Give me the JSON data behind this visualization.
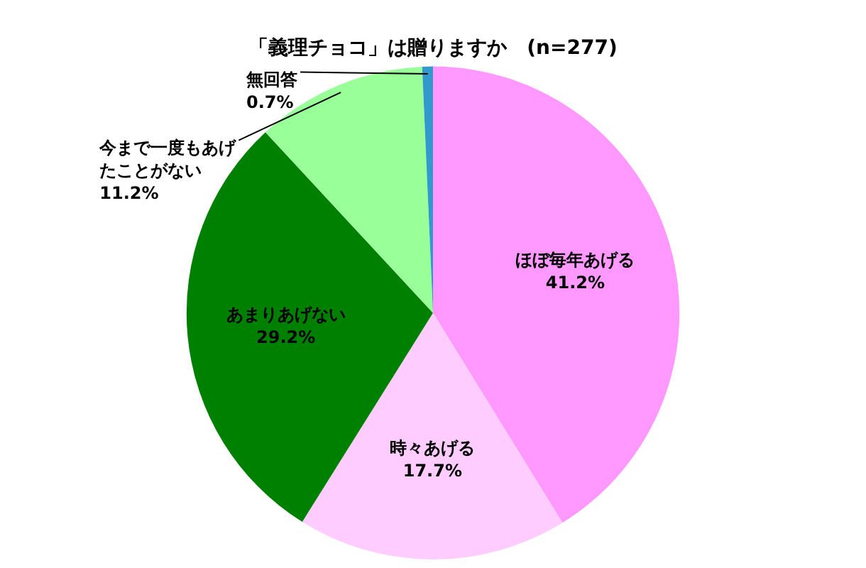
{
  "chart_data": {
    "type": "pie",
    "title": "「義理チョコ」は贈りますか　(n=277)",
    "categories": [
      "ほぼ毎年あげる",
      "時々あげる",
      "あまりあげない",
      "今まで一度もあげたことがない",
      "無回答"
    ],
    "values": [
      41.2,
      17.7,
      29.2,
      11.2,
      0.7
    ],
    "colors": [
      "#ff99ff",
      "#ffccff",
      "#008000",
      "#99ff99",
      "#3399cc"
    ],
    "value_labels": [
      "41.2%",
      "17.7%",
      "29.2%",
      "11.2%",
      "0.7%"
    ],
    "legend": false
  }
}
